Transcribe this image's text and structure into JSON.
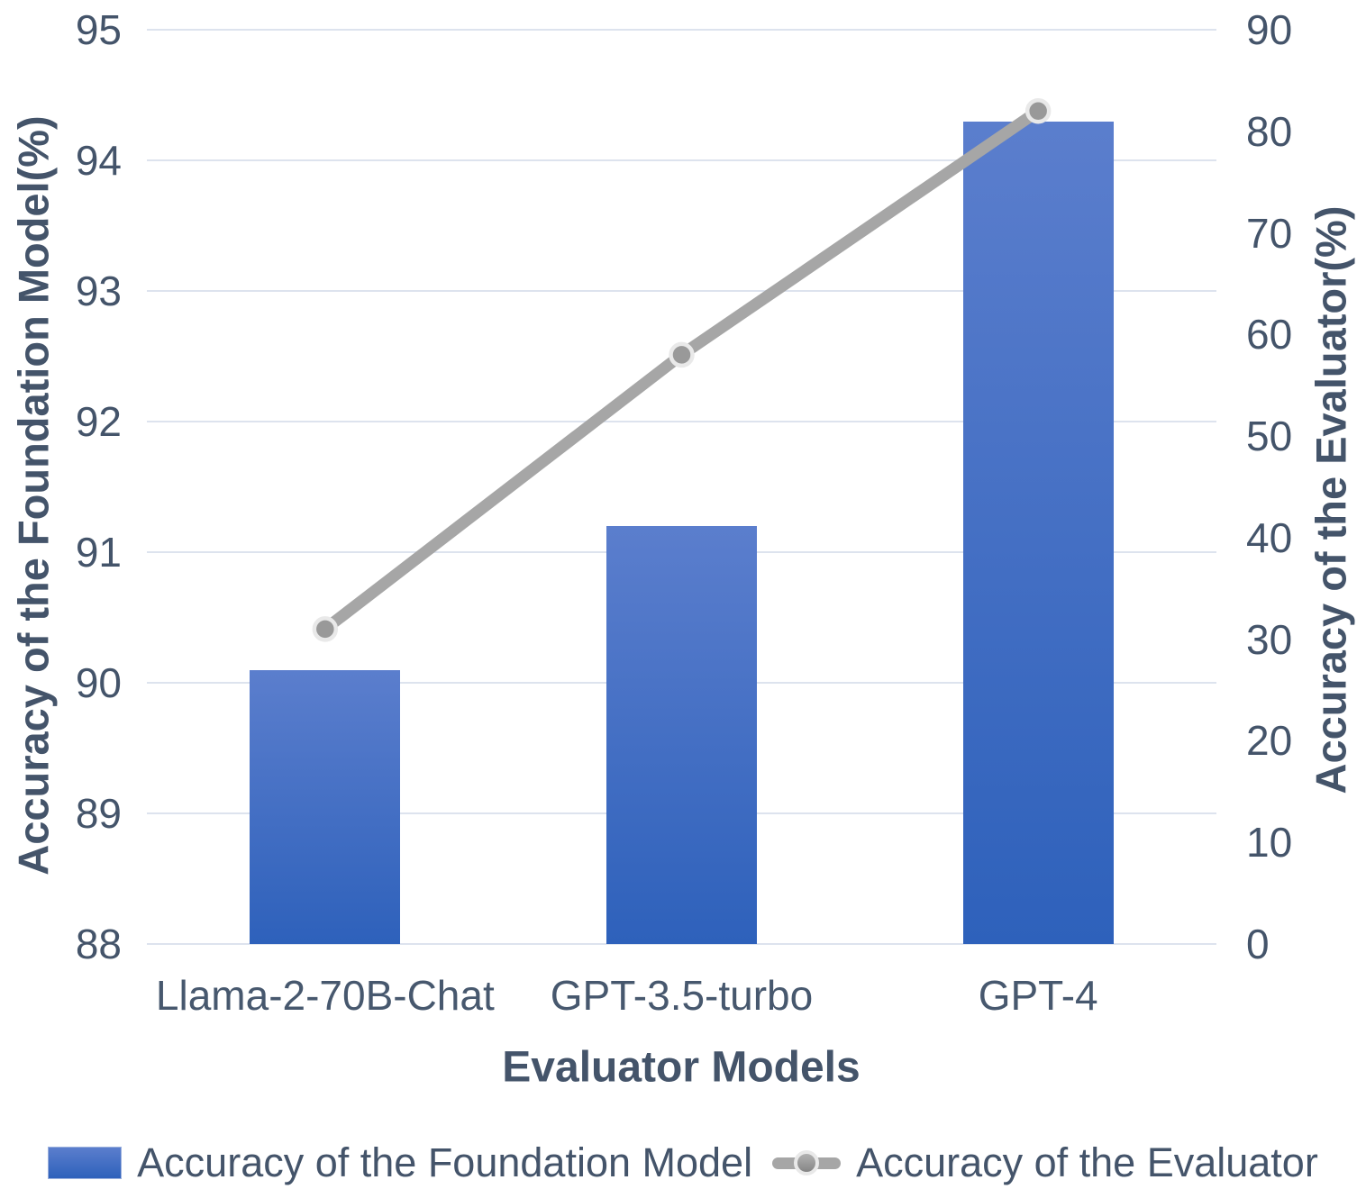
{
  "chart_data": {
    "type": "bar",
    "subtype": "combo-bar-line-dual-axis",
    "categories": [
      "Llama-2-70B-Chat",
      "GPT-3.5-turbo",
      "GPT-4"
    ],
    "series": [
      {
        "name": "Accuracy of the Foundation Model",
        "type": "bar",
        "axis": "left",
        "values": [
          90.1,
          91.2,
          94.3
        ]
      },
      {
        "name": "Accuracy of the Evaluator",
        "type": "line",
        "axis": "right",
        "values": [
          31,
          58,
          82
        ]
      }
    ],
    "x_axis": {
      "title": "Evaluator Models"
    },
    "left_axis": {
      "title": "Accuracy of the Foundation Model(%)",
      "min": 88,
      "max": 95,
      "tick_step": 1,
      "ticks": [
        88,
        89,
        90,
        91,
        92,
        93,
        94,
        95
      ]
    },
    "right_axis": {
      "title": "Accuracy of the Evaluator(%)",
      "min": 0,
      "max": 90,
      "tick_step": 10,
      "ticks": [
        0,
        10,
        20,
        30,
        40,
        50,
        60,
        70,
        80,
        90
      ]
    },
    "grid": "horizontal-on",
    "legend_position": "bottom",
    "legend": [
      {
        "label": "Accuracy of the Foundation Model",
        "marker": "bar-swatch"
      },
      {
        "label": "Accuracy of the Evaluator",
        "marker": "line-with-dot"
      }
    ],
    "colors": {
      "bar_top": "#5b7ecd",
      "bar_bottom": "#2e61bb",
      "line": "#a6a6a6",
      "marker_fill": "#999999",
      "marker_ring": "#e9e9e9",
      "gridline": "#dde3ee",
      "text": "#44546a"
    }
  }
}
